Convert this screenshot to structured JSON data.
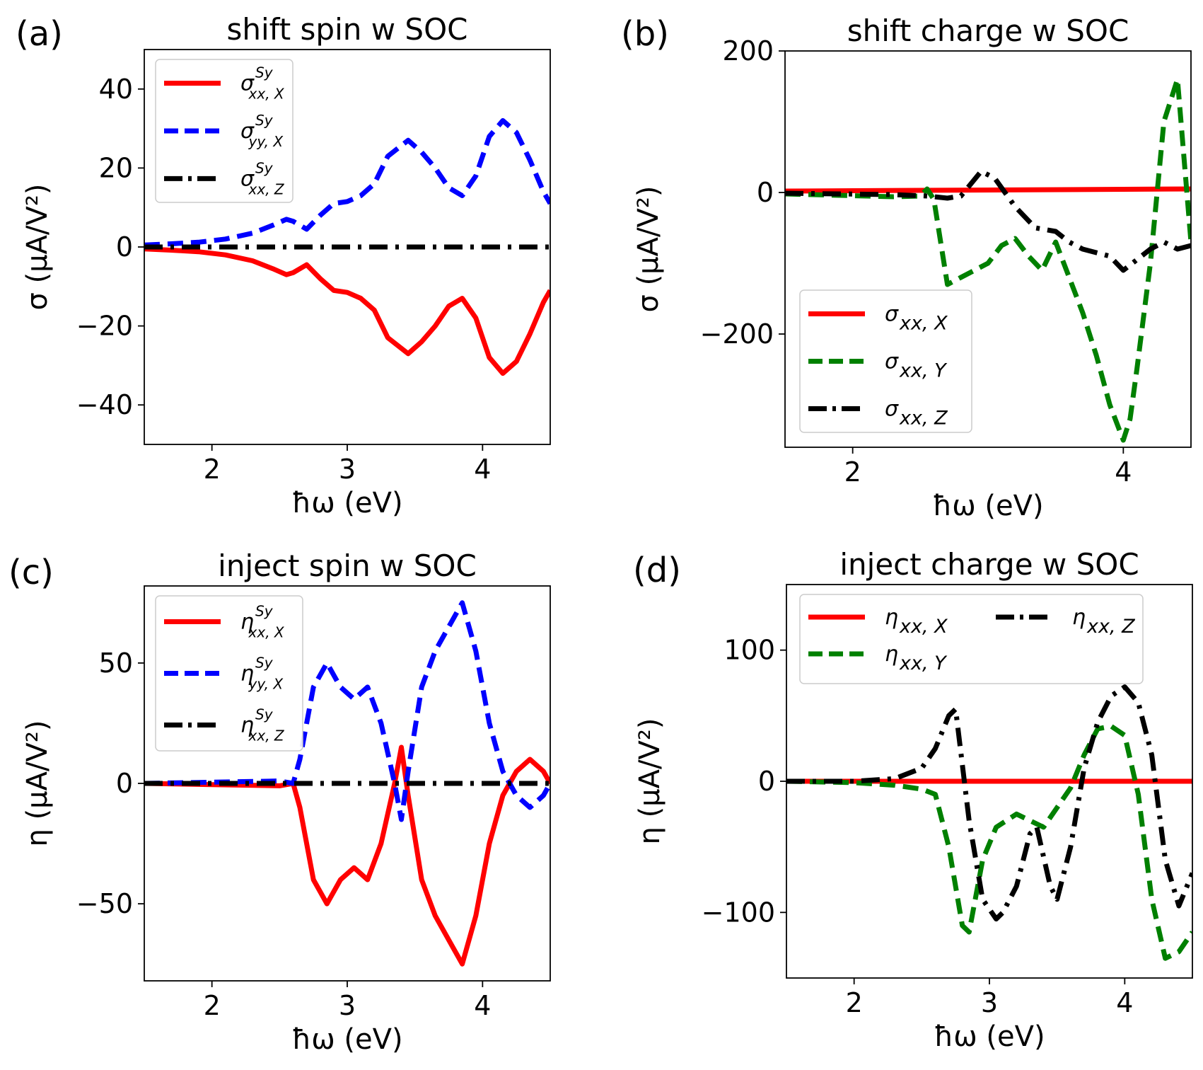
{
  "chart_data": [
    {
      "type": "line",
      "panel": "(a)",
      "title": "shift spin w SOC",
      "xlabel": "ħω (eV)",
      "ylabel": "σ (μA/V²)",
      "xlim": [
        1.5,
        4.5
      ],
      "ylim": [
        -50,
        50
      ],
      "xticks": [
        2,
        3,
        4
      ],
      "yticks": [
        -40,
        -20,
        0,
        20,
        40
      ],
      "ytick_labels": [
        "−40",
        "−20",
        "0",
        "20",
        "40"
      ],
      "legend_position": "upper-left",
      "series": [
        {
          "name": "σ^{Sy}_{xx,X}",
          "symbol": "σ",
          "sup": "Sy",
          "sub": "xx, X",
          "color": "#ff0000",
          "dash": "solid",
          "x": [
            1.5,
            1.7,
            1.9,
            2.1,
            2.3,
            2.45,
            2.55,
            2.6,
            2.7,
            2.8,
            2.9,
            3.0,
            3.1,
            3.2,
            3.3,
            3.45,
            3.55,
            3.65,
            3.75,
            3.85,
            3.95,
            4.05,
            4.15,
            4.25,
            4.35,
            4.45,
            4.5
          ],
          "y": [
            -0.5,
            -0.8,
            -1.2,
            -2,
            -3.5,
            -5.5,
            -7,
            -6.5,
            -4.5,
            -8,
            -11,
            -11.5,
            -13,
            -16,
            -23,
            -27,
            -24,
            -20,
            -15,
            -13,
            -18,
            -28,
            -32,
            -29,
            -22,
            -14,
            -11
          ]
        },
        {
          "name": "σ^{Sy}_{yy,X}",
          "symbol": "σ",
          "sup": "Sy",
          "sub": "yy, X",
          "color": "#0000ff",
          "dash": "dashed",
          "x": [
            1.5,
            1.7,
            1.9,
            2.1,
            2.3,
            2.45,
            2.55,
            2.6,
            2.7,
            2.8,
            2.9,
            3.0,
            3.1,
            3.2,
            3.3,
            3.45,
            3.55,
            3.65,
            3.75,
            3.85,
            3.95,
            4.05,
            4.15,
            4.25,
            4.35,
            4.45,
            4.5
          ],
          "y": [
            0.5,
            0.8,
            1.2,
            2,
            3.5,
            5.5,
            7,
            6.5,
            4.5,
            8,
            11,
            11.5,
            13,
            16,
            23,
            27,
            24,
            20,
            15,
            13,
            18,
            28,
            32,
            29,
            22,
            14,
            11
          ]
        },
        {
          "name": "σ^{Sy}_{xx,Z}",
          "symbol": "σ",
          "sup": "Sy",
          "sub": "xx, Z",
          "color": "#000000",
          "dash": "dashdot",
          "x": [
            1.5,
            4.5
          ],
          "y": [
            0,
            0
          ]
        }
      ]
    },
    {
      "type": "line",
      "panel": "(b)",
      "title": "shift charge w SOC",
      "xlabel": "ħω (eV)",
      "ylabel": "σ (μA/V²)",
      "xlim": [
        1.5,
        4.5
      ],
      "ylim": [
        -360,
        200
      ],
      "xticks": [
        2,
        4
      ],
      "yticks": [
        -200,
        0,
        200
      ],
      "ytick_labels": [
        "−200",
        "0",
        "200"
      ],
      "legend_position": "lower-left",
      "series": [
        {
          "name": "σ_{xx,X}",
          "symbol": "σ",
          "sup": "",
          "sub": "xx, X",
          "color": "#ff0000",
          "dash": "solid",
          "x": [
            1.5,
            4.5
          ],
          "y": [
            2,
            5
          ]
        },
        {
          "name": "σ_{xx,Y}",
          "symbol": "σ",
          "sup": "",
          "sub": "xx, Y",
          "color": "#008000",
          "dash": "dashed",
          "x": [
            1.5,
            1.9,
            2.3,
            2.5,
            2.55,
            2.6,
            2.7,
            2.8,
            3.0,
            3.1,
            3.2,
            3.3,
            3.4,
            3.5,
            3.6,
            3.7,
            3.8,
            3.9,
            4.0,
            4.05,
            4.1,
            4.2,
            4.3,
            4.4,
            4.5
          ],
          "y": [
            -2,
            -4,
            -6,
            -5,
            5,
            -10,
            -130,
            -120,
            -100,
            -75,
            -65,
            -90,
            -110,
            -70,
            -120,
            -170,
            -230,
            -300,
            -350,
            -320,
            -250,
            -100,
            100,
            160,
            -70
          ]
        },
        {
          "name": "σ_{xx,Z}",
          "symbol": "σ",
          "sup": "",
          "sub": "xx, Z",
          "color": "#000000",
          "dash": "dashdot",
          "x": [
            1.5,
            1.9,
            2.3,
            2.55,
            2.7,
            2.8,
            2.95,
            3.05,
            3.2,
            3.35,
            3.5,
            3.6,
            3.7,
            3.8,
            3.9,
            4.0,
            4.1,
            4.2,
            4.3,
            4.4,
            4.5
          ],
          "y": [
            -1,
            -2,
            -3,
            -5,
            -8,
            -5,
            30,
            20,
            -20,
            -50,
            -55,
            -70,
            -80,
            -85,
            -90,
            -110,
            -95,
            -80,
            -70,
            -80,
            -75
          ]
        }
      ]
    },
    {
      "type": "line",
      "panel": "(c)",
      "title": "inject spin w SOC",
      "xlabel": "ħω (eV)",
      "ylabel": "η (μA/V²)",
      "xlim": [
        1.5,
        4.5
      ],
      "ylim": [
        -82,
        82
      ],
      "xticks": [
        2,
        3,
        4
      ],
      "yticks": [
        -50,
        0,
        50
      ],
      "ytick_labels": [
        "−50",
        "0",
        "50"
      ],
      "legend_position": "upper-left",
      "series": [
        {
          "name": "η^{Sy}_{xx,X}",
          "symbol": "η",
          "sup": "Sy",
          "sub": "xx, X",
          "color": "#ff0000",
          "dash": "solid",
          "x": [
            1.5,
            2.0,
            2.5,
            2.6,
            2.65,
            2.75,
            2.85,
            2.95,
            3.05,
            3.15,
            3.25,
            3.35,
            3.4,
            3.45,
            3.55,
            3.65,
            3.75,
            3.85,
            3.95,
            4.05,
            4.15,
            4.25,
            4.35,
            4.45,
            4.5
          ],
          "y": [
            0,
            -0.5,
            -1,
            0,
            -10,
            -40,
            -50,
            -40,
            -35,
            -40,
            -25,
            0,
            15,
            -5,
            -40,
            -55,
            -65,
            -75,
            -55,
            -25,
            -5,
            5,
            10,
            5,
            0
          ]
        },
        {
          "name": "η^{Sy}_{yy,X}",
          "symbol": "η",
          "sup": "Sy",
          "sub": "yy, X",
          "color": "#0000ff",
          "dash": "dashed",
          "x": [
            1.5,
            2.0,
            2.5,
            2.6,
            2.65,
            2.75,
            2.85,
            2.95,
            3.05,
            3.15,
            3.25,
            3.35,
            3.4,
            3.45,
            3.55,
            3.65,
            3.75,
            3.85,
            3.95,
            4.05,
            4.15,
            4.25,
            4.35,
            4.45,
            4.5
          ],
          "y": [
            0,
            0.5,
            1,
            0,
            10,
            40,
            50,
            40,
            35,
            40,
            25,
            0,
            -15,
            5,
            40,
            55,
            65,
            75,
            55,
            25,
            5,
            -5,
            -10,
            -5,
            0
          ]
        },
        {
          "name": "η^{Sy}_{xx,Z}",
          "symbol": "η",
          "sup": "Sy",
          "sub": "xx, Z",
          "color": "#000000",
          "dash": "dashdot",
          "x": [
            1.5,
            4.5
          ],
          "y": [
            0,
            0
          ]
        }
      ]
    },
    {
      "type": "line",
      "panel": "(d)",
      "title": "inject charge w SOC",
      "xlabel": "ħω (eV)",
      "ylabel": "η (μA/V²)",
      "xlim": [
        1.5,
        4.5
      ],
      "ylim": [
        -150,
        150
      ],
      "xticks": [
        2,
        3,
        4
      ],
      "yticks": [
        -100,
        0,
        100
      ],
      "ytick_labels": [
        "−100",
        "0",
        "100"
      ],
      "legend_position": "upper-left",
      "series": [
        {
          "name": "η_{xx,X}",
          "symbol": "η",
          "sup": "",
          "sub": "xx, X",
          "color": "#ff0000",
          "dash": "solid",
          "x": [
            1.5,
            4.5
          ],
          "y": [
            0,
            0
          ]
        },
        {
          "name": "η_{xx,Y}",
          "symbol": "η",
          "sup": "",
          "sub": "xx, Y",
          "color": "#008000",
          "dash": "dashed",
          "x": [
            1.5,
            2.0,
            2.3,
            2.5,
            2.6,
            2.7,
            2.8,
            2.85,
            2.95,
            3.05,
            3.2,
            3.3,
            3.4,
            3.5,
            3.6,
            3.7,
            3.8,
            3.9,
            4.0,
            4.1,
            4.2,
            4.3,
            4.4,
            4.5
          ],
          "y": [
            0,
            -1,
            -3,
            -6,
            -10,
            -50,
            -110,
            -115,
            -60,
            -35,
            -25,
            -30,
            -35,
            -20,
            -5,
            20,
            40,
            42,
            35,
            -10,
            -90,
            -135,
            -130,
            -115
          ]
        },
        {
          "name": "η_{xx,Z}",
          "symbol": "η",
          "sup": "",
          "sub": "xx, Z",
          "color": "#000000",
          "dash": "dashdot",
          "x": [
            1.5,
            2.0,
            2.3,
            2.5,
            2.6,
            2.7,
            2.75,
            2.85,
            2.95,
            3.05,
            3.1,
            3.2,
            3.3,
            3.35,
            3.45,
            3.5,
            3.6,
            3.7,
            3.8,
            3.9,
            4.0,
            4.1,
            4.2,
            4.3,
            4.4,
            4.5
          ],
          "y": [
            0,
            0,
            2,
            10,
            25,
            50,
            55,
            -30,
            -90,
            -105,
            -100,
            -80,
            -40,
            -35,
            -80,
            -90,
            -50,
            10,
            45,
            65,
            72,
            60,
            20,
            -60,
            -95,
            -70
          ]
        }
      ]
    }
  ]
}
